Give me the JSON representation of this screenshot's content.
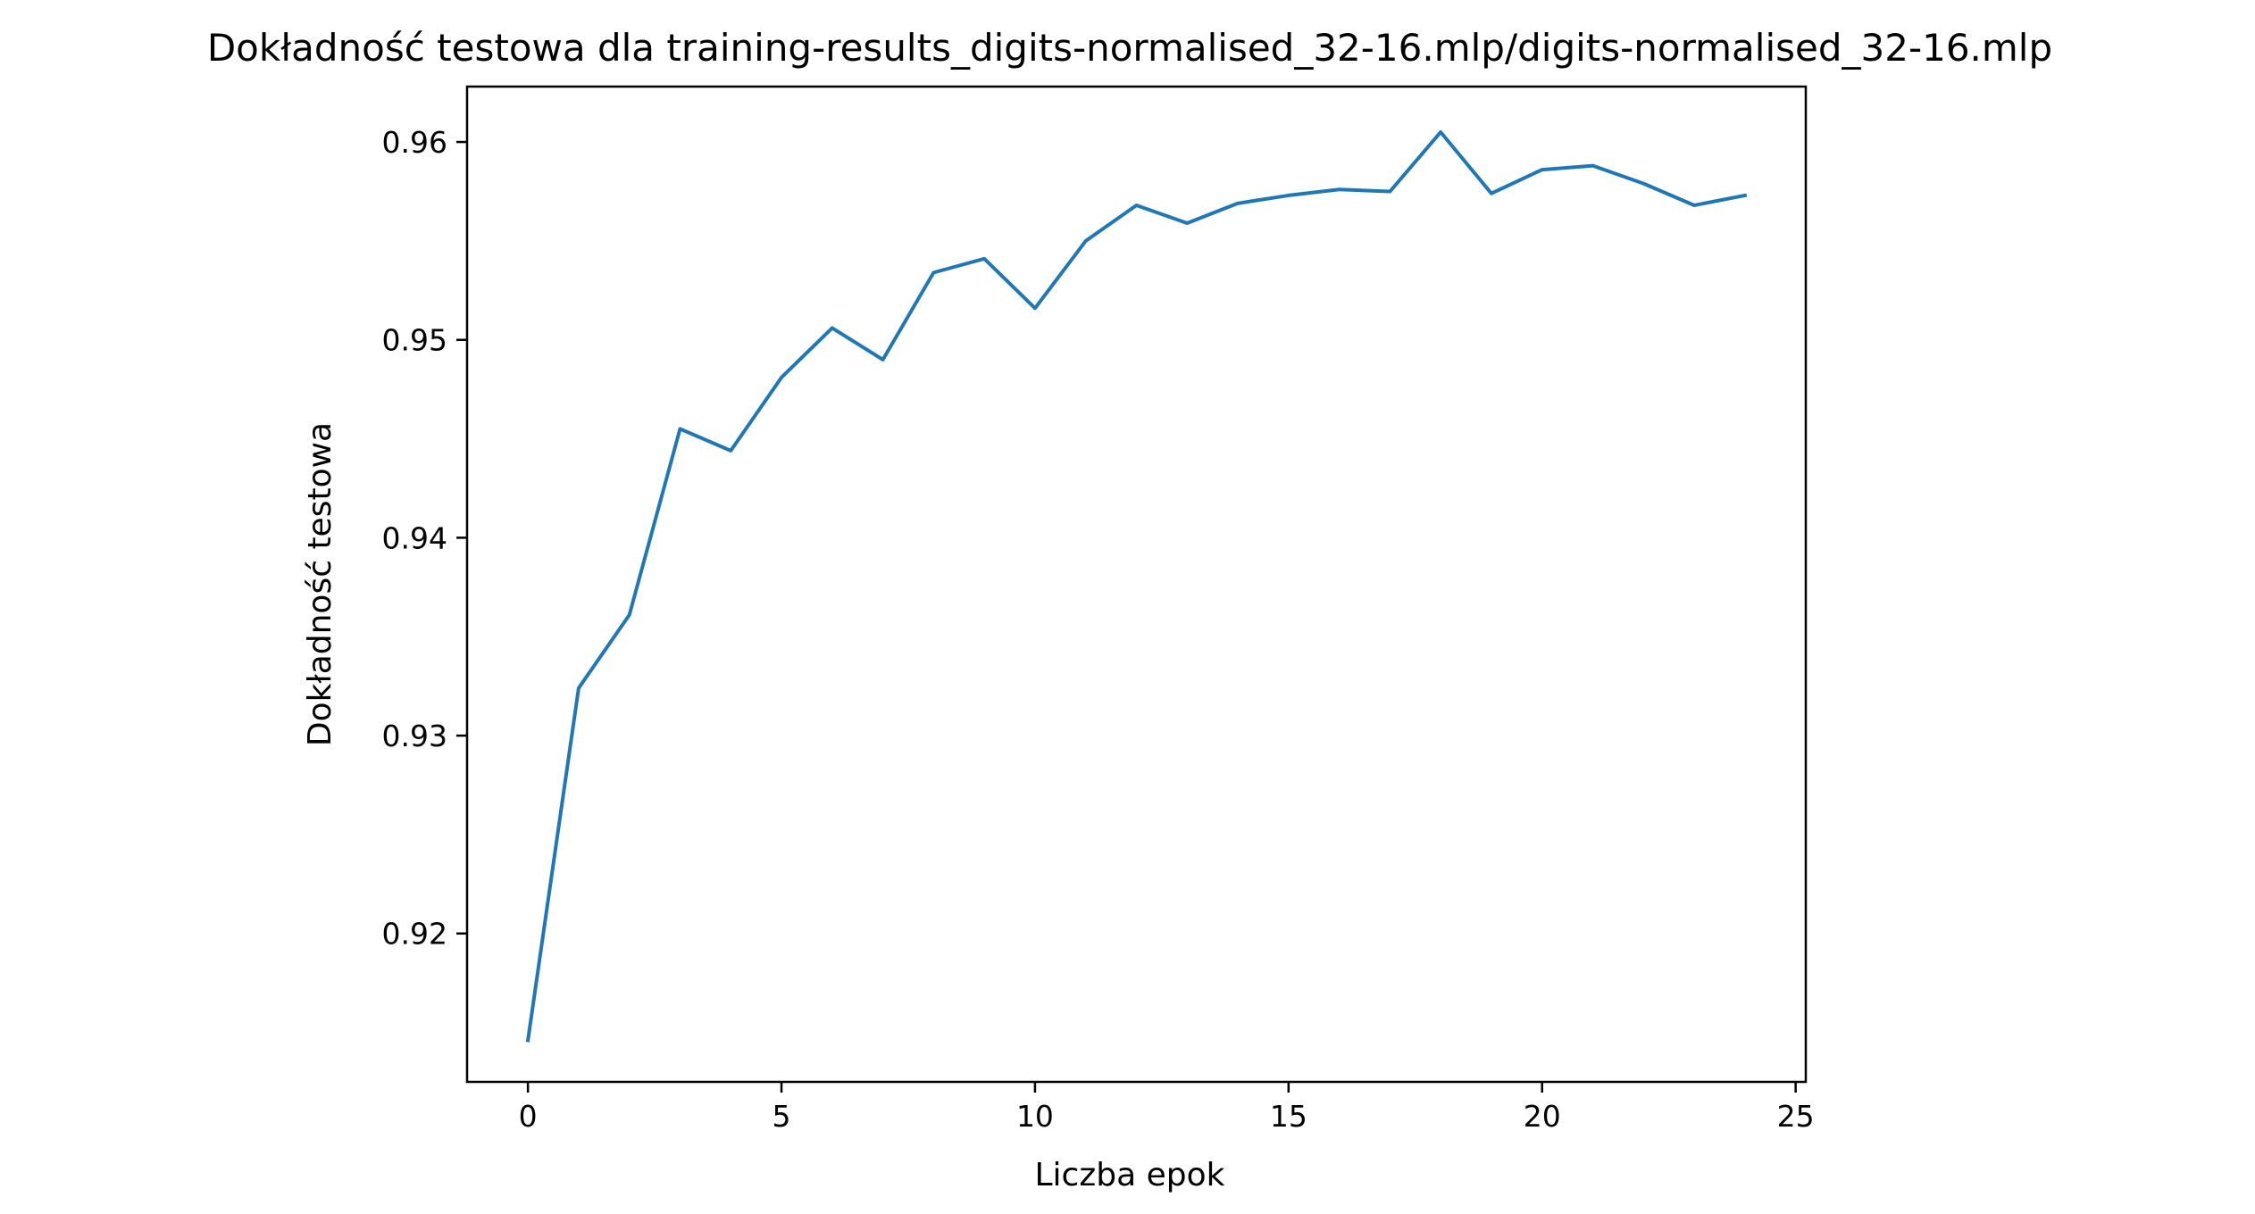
{
  "chart_data": {
    "type": "line",
    "title": "Dokładność testowa dla training-results_digits-normalised_32-16.mlp/digits-normalised_32-16.mlp",
    "xlabel": "Liczba epok",
    "ylabel": "Dokładność testowa",
    "xlim": [
      -1.2,
      25.2
    ],
    "ylim": [
      0.9125,
      0.9628
    ],
    "xticks": [
      0,
      5,
      10,
      15,
      20,
      25
    ],
    "xtick_labels": [
      "0",
      "5",
      "10",
      "15",
      "20",
      "25"
    ],
    "yticks": [
      0.92,
      0.93,
      0.94,
      0.95,
      0.96
    ],
    "ytick_labels": [
      "0.92",
      "0.93",
      "0.94",
      "0.95",
      "0.96"
    ],
    "grid": false,
    "legend": "none",
    "series": [
      {
        "color": "#1f77b4",
        "x": [
          0,
          1,
          2,
          3,
          4,
          5,
          6,
          7,
          8,
          9,
          10,
          11,
          12,
          13,
          14,
          15,
          16,
          17,
          18,
          19,
          20,
          21,
          22,
          23,
          24
        ],
        "y": [
          0.9146,
          0.9324,
          0.9361,
          0.9455,
          0.9444,
          0.9481,
          0.9506,
          0.949,
          0.9534,
          0.9541,
          0.9516,
          0.955,
          0.9568,
          0.9559,
          0.9569,
          0.9573,
          0.9576,
          0.9575,
          0.9605,
          0.9574,
          0.9586,
          0.9588,
          0.9579,
          0.9568,
          0.9573
        ]
      }
    ]
  }
}
